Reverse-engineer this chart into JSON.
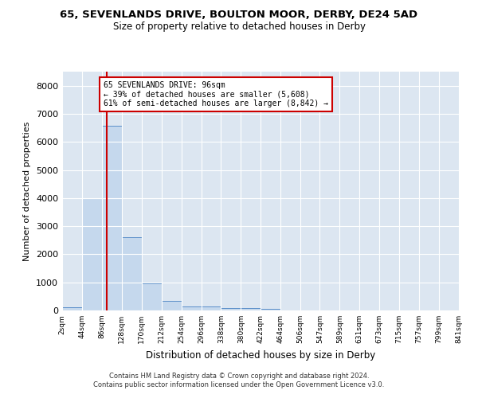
{
  "title": "65, SEVENLANDS DRIVE, BOULTON MOOR, DERBY, DE24 5AD",
  "subtitle": "Size of property relative to detached houses in Derby",
  "xlabel": "Distribution of detached houses by size in Derby",
  "ylabel": "Number of detached properties",
  "bar_color": "#c5d8ed",
  "bar_edge_color": "#5b8fc9",
  "background_color": "#dce6f1",
  "property_size": 96,
  "annotation_line1": "65 SEVENLANDS DRIVE: 96sqm",
  "annotation_line2": "← 39% of detached houses are smaller (5,608)",
  "annotation_line3": "61% of semi-detached houses are larger (8,842) →",
  "bin_edges": [
    2,
    44,
    86,
    128,
    170,
    212,
    254,
    296,
    338,
    380,
    422,
    464,
    506,
    547,
    589,
    631,
    673,
    715,
    757,
    799,
    841
  ],
  "bar_heights": [
    100,
    4000,
    6580,
    2620,
    960,
    330,
    150,
    130,
    90,
    80,
    50,
    0,
    0,
    0,
    0,
    0,
    0,
    0,
    0,
    0
  ],
  "ylim": [
    0,
    8500
  ],
  "yticks": [
    0,
    1000,
    2000,
    3000,
    4000,
    5000,
    6000,
    7000,
    8000
  ],
  "tick_labels": [
    "2sqm",
    "44sqm",
    "86sqm",
    "128sqm",
    "170sqm",
    "212sqm",
    "254sqm",
    "296sqm",
    "338sqm",
    "380sqm",
    "422sqm",
    "464sqm",
    "506sqm",
    "547sqm",
    "589sqm",
    "631sqm",
    "673sqm",
    "715sqm",
    "757sqm",
    "799sqm",
    "841sqm"
  ],
  "footer_line1": "Contains HM Land Registry data © Crown copyright and database right 2024.",
  "footer_line2": "Contains public sector information licensed under the Open Government Licence v3.0.",
  "red_line_color": "#cc0000",
  "annotation_box_color": "#ffffff",
  "annotation_box_edge": "#cc0000"
}
